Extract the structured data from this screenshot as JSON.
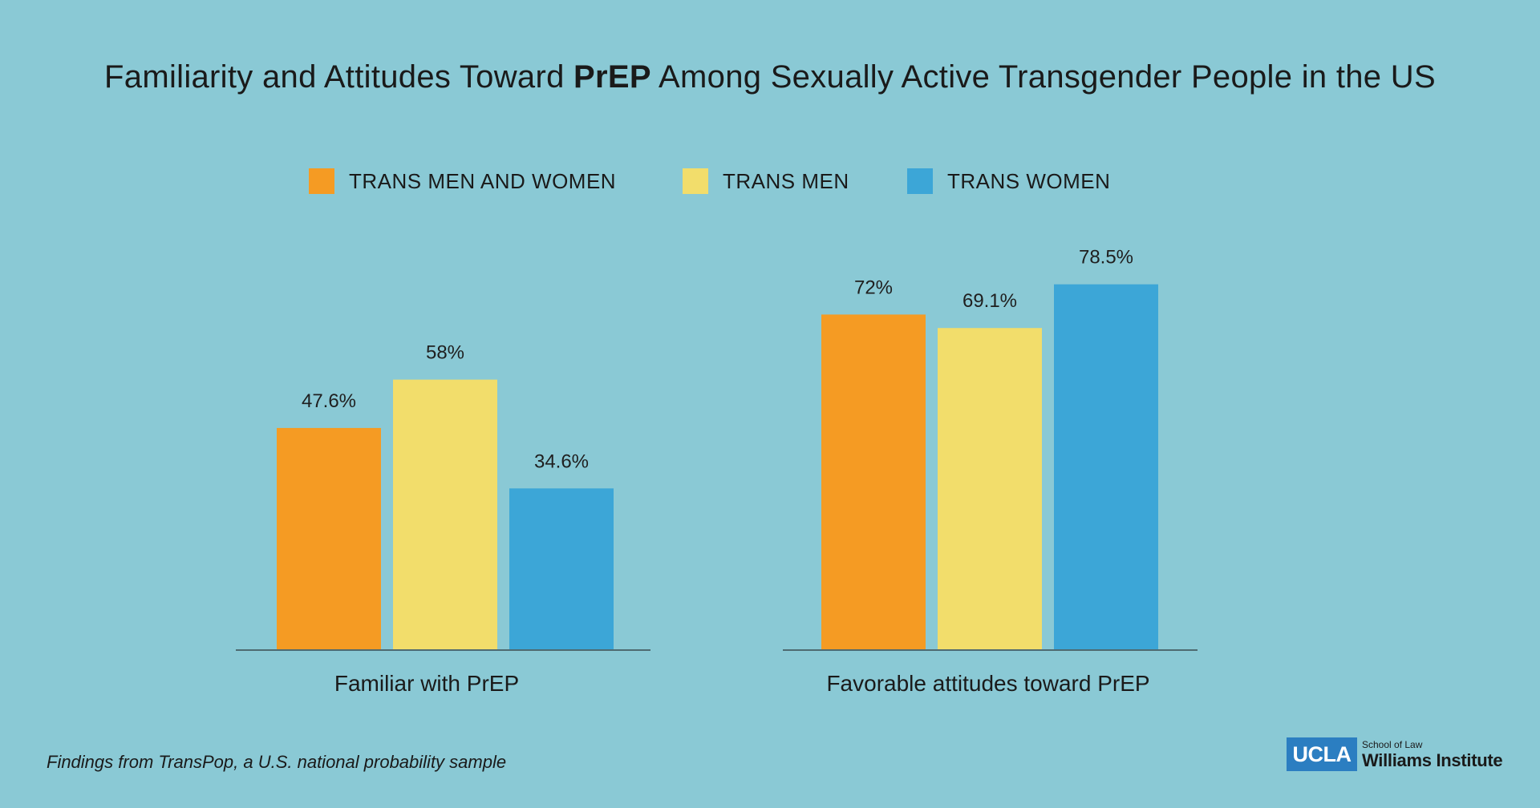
{
  "title": {
    "before": "Familiarity and Attitudes Toward ",
    "bold": "PrEP",
    "after": " Among Sexually Active Transgender People in the US"
  },
  "legend": [
    {
      "label": "TRANS MEN AND WOMEN",
      "color": "#f59b23"
    },
    {
      "label": "TRANS MEN",
      "color": "#f2dd6b"
    },
    {
      "label": "TRANS WOMEN",
      "color": "#3ca6d7"
    }
  ],
  "chart_data": {
    "type": "bar",
    "title": "Familiarity and Attitudes Toward PrEP Among Sexually Active Transgender People in the US",
    "categories": [
      "Familiar with PrEP",
      "Favorable attitudes toward PrEP"
    ],
    "series": [
      {
        "name": "TRANS MEN AND WOMEN",
        "values": [
          47.6,
          72
        ],
        "labels": [
          "47.6%",
          "72%"
        ],
        "color": "#f59b23"
      },
      {
        "name": "TRANS MEN",
        "values": [
          58,
          69.1
        ],
        "labels": [
          "58%",
          "69.1%"
        ],
        "color": "#f2dd6b"
      },
      {
        "name": "TRANS WOMEN",
        "values": [
          34.6,
          78.5
        ],
        "labels": [
          "34.6%",
          "78.5%"
        ],
        "color": "#3ca6d7"
      }
    ],
    "ylim": [
      0,
      100
    ],
    "grid": false,
    "legend_position": "top"
  },
  "footnote": "Findings from TransPop, a U.S. national probability sample",
  "logo": {
    "abbr": "UCLA",
    "line1": "School of Law",
    "line2": "Williams Institute"
  }
}
